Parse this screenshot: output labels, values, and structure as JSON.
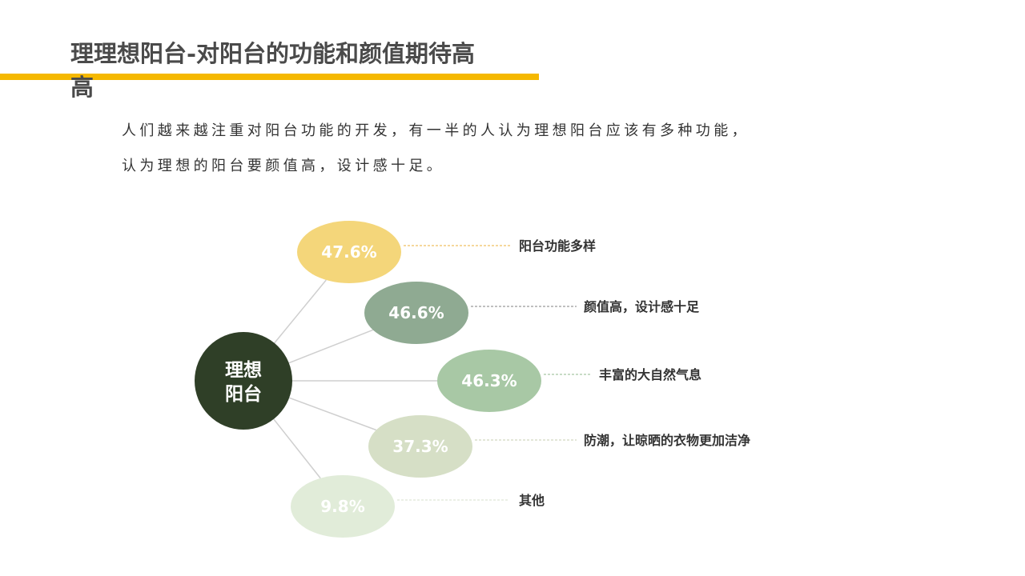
{
  "page": {
    "title": "理理想阳台-对阳台的功能和颜值期待高高",
    "description_lines": [
      "人们越来越注重对阳台功能的开发，有一半的人认为理想阳台应该有多种功能，",
      "认为理想的阳台要颜值高，设计感十足。"
    ],
    "accent_color": "#f5b800"
  },
  "diagram": {
    "center_label_lines": [
      "理想",
      "阳台"
    ],
    "center_color": "#2f3f27",
    "connector_color": "#cfcfcf",
    "items": [
      {
        "value": "47.6%",
        "label": "阳台功能多样",
        "fill": "#f4d67a",
        "text_color": "#ffffff",
        "leader_color": "#f0c060",
        "leader_style": "dashed"
      },
      {
        "value": "46.6%",
        "label": "颜值高，设计感十足",
        "fill": "#8faa92",
        "text_color": "#ffffff",
        "leader_color": "#9a9a9a",
        "leader_style": "dashed"
      },
      {
        "value": "46.3%",
        "label": "丰富的大自然气息",
        "fill": "#a8c8a5",
        "text_color": "#ffffff",
        "leader_color": "#a8c8a5",
        "leader_style": "dashed"
      },
      {
        "value": "37.3%",
        "label": "防潮，让晾晒的衣物更加洁净",
        "fill": "#d6dfc6",
        "text_color": "#ffffff",
        "leader_color": "#d0d8c0",
        "leader_style": "dashed"
      },
      {
        "value": "9.8%",
        "label": "其他",
        "fill": "#e1ecd9",
        "text_color": "#ffffff",
        "leader_color": "#dfe8d6",
        "leader_style": "dashed"
      }
    ]
  }
}
